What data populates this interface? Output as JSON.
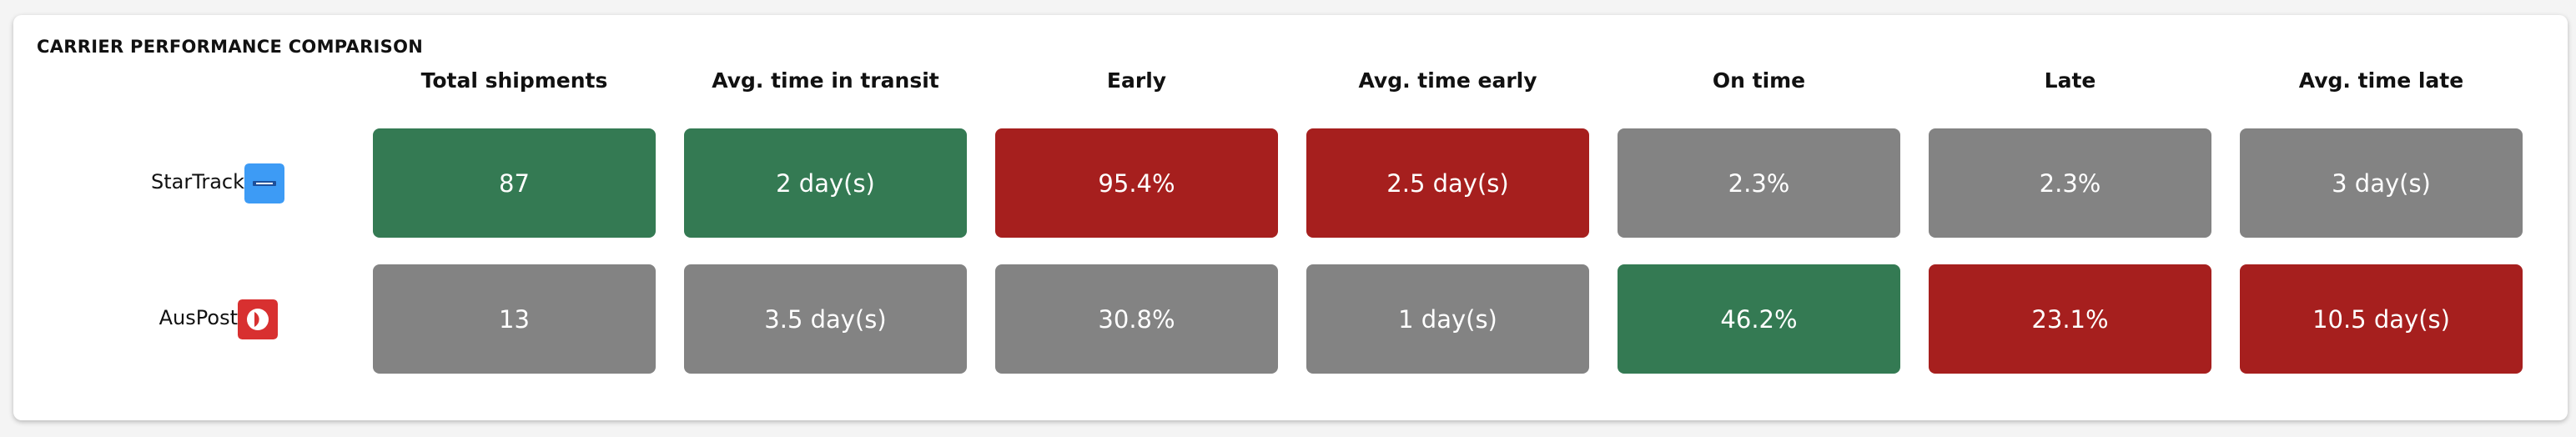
{
  "title": "CARRIER PERFORMANCE COMPARISON",
  "columns": [
    "Total shipments",
    "Avg. time in transit",
    "Early",
    "Avg. time early",
    "On time",
    "Late",
    "Avg. time late"
  ],
  "rows": [
    {
      "carrier": "StarTrack",
      "cells": [
        {
          "text": "87",
          "color": "#347a53"
        },
        {
          "text": "2 day(s)",
          "color": "#347a53"
        },
        {
          "text": "95.4%",
          "color": "#a61f1e"
        },
        {
          "text": "2.5 day(s)",
          "color": "#a61f1e"
        },
        {
          "text": "2.3%",
          "color": "#838383"
        },
        {
          "text": "2.3%",
          "color": "#838383"
        },
        {
          "text": "3 day(s)",
          "color": "#838383"
        }
      ]
    },
    {
      "carrier": "AusPost",
      "cells": [
        {
          "text": "13",
          "color": "#838383"
        },
        {
          "text": "3.5 day(s)",
          "color": "#838383"
        },
        {
          "text": "30.8%",
          "color": "#838383"
        },
        {
          "text": "1 day(s)",
          "color": "#838383"
        },
        {
          "text": "46.2%",
          "color": "#347a53"
        },
        {
          "text": "23.1%",
          "color": "#a61f1e"
        },
        {
          "text": "10.5 day(s)",
          "color": "#a61f1e"
        }
      ]
    }
  ]
}
